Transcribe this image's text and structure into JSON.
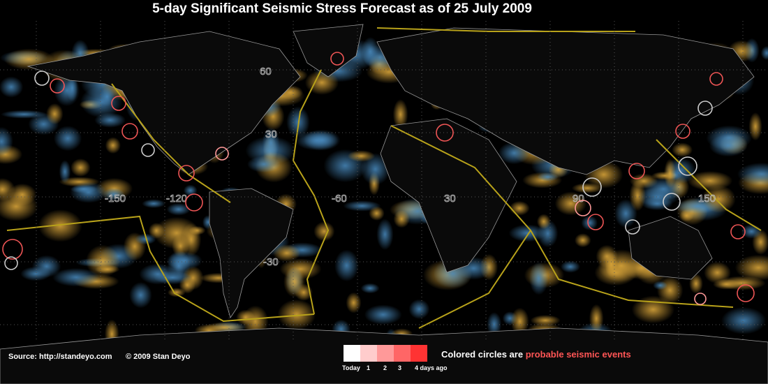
{
  "header": {
    "title": "5-day Significant Seismic Stress Forecast as of 25 July 2009"
  },
  "map": {
    "lat_labels": [
      "60",
      "30",
      "-30"
    ],
    "lon_labels": [
      "-150",
      "-120",
      "-60",
      "30",
      "90",
      "150"
    ]
  },
  "footer": {
    "source": "Source:  http://standeyo.com",
    "copyright": "© 2009 Stan Deyo",
    "legend": {
      "labels": [
        "Today",
        "1",
        "2",
        "3",
        "4 days ago"
      ],
      "note": "Colored circles are",
      "note_highlight": "probable seismic events"
    }
  }
}
